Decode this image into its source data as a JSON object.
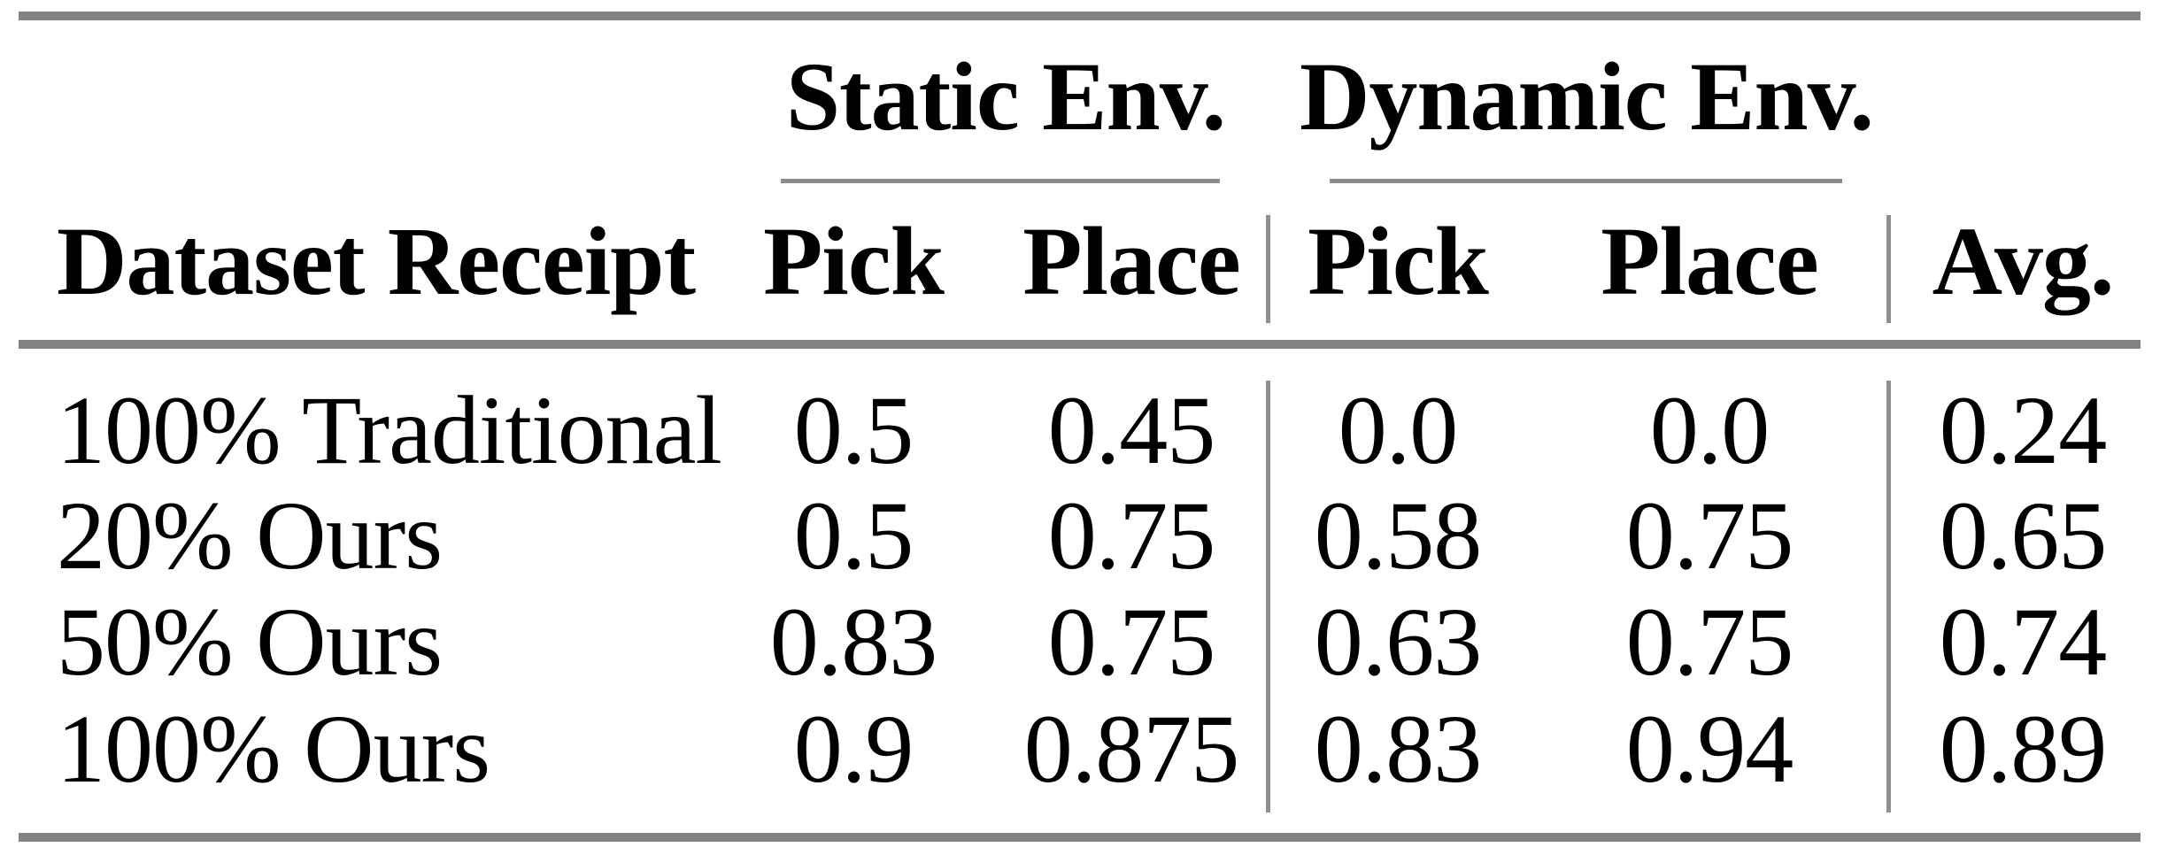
{
  "table": {
    "group_headers": [
      {
        "label": "Static Env."
      },
      {
        "label": "Dynamic Env."
      }
    ],
    "columns": {
      "row_header": "Dataset Receipt",
      "static_pick": "Pick",
      "static_place": "Place",
      "dynamic_pick": "Pick",
      "dynamic_place": "Place",
      "avg": "Avg."
    },
    "rows": [
      {
        "label": "100% Traditional",
        "static_pick": "0.5",
        "static_place": "0.45",
        "dynamic_pick": "0.0",
        "dynamic_place": "0.0",
        "avg": "0.24"
      },
      {
        "label": "20% Ours",
        "static_pick": "0.5",
        "static_place": "0.75",
        "dynamic_pick": "0.58",
        "dynamic_place": "0.75",
        "avg": "0.65"
      },
      {
        "label": "50% Ours",
        "static_pick": "0.83",
        "static_place": "0.75",
        "dynamic_pick": "0.63",
        "dynamic_place": "0.75",
        "avg": "0.74"
      },
      {
        "label": "100% Ours",
        "static_pick": "0.9",
        "static_place": "0.875",
        "dynamic_pick": "0.83",
        "dynamic_place": "0.94",
        "avg": "0.89"
      }
    ],
    "colors": {
      "text": "#000000",
      "rule_thick": "#838383",
      "rule_thin": "#8f8f8f",
      "background": "#ffffff"
    }
  },
  "chart_data": {
    "type": "table",
    "title": "",
    "column_groups": [
      "",
      "Static Env.",
      "Static Env.",
      "Dynamic Env.",
      "Dynamic Env.",
      ""
    ],
    "columns": [
      "Dataset Receipt",
      "Pick",
      "Place",
      "Pick",
      "Place",
      "Avg."
    ],
    "rows": [
      [
        "100% Traditional",
        0.5,
        0.45,
        0.0,
        0.0,
        0.24
      ],
      [
        "20% Ours",
        0.5,
        0.75,
        0.58,
        0.75,
        0.65
      ],
      [
        "50% Ours",
        0.83,
        0.75,
        0.63,
        0.75,
        0.74
      ],
      [
        "100% Ours",
        0.9,
        0.875,
        0.83,
        0.94,
        0.89
      ]
    ]
  }
}
